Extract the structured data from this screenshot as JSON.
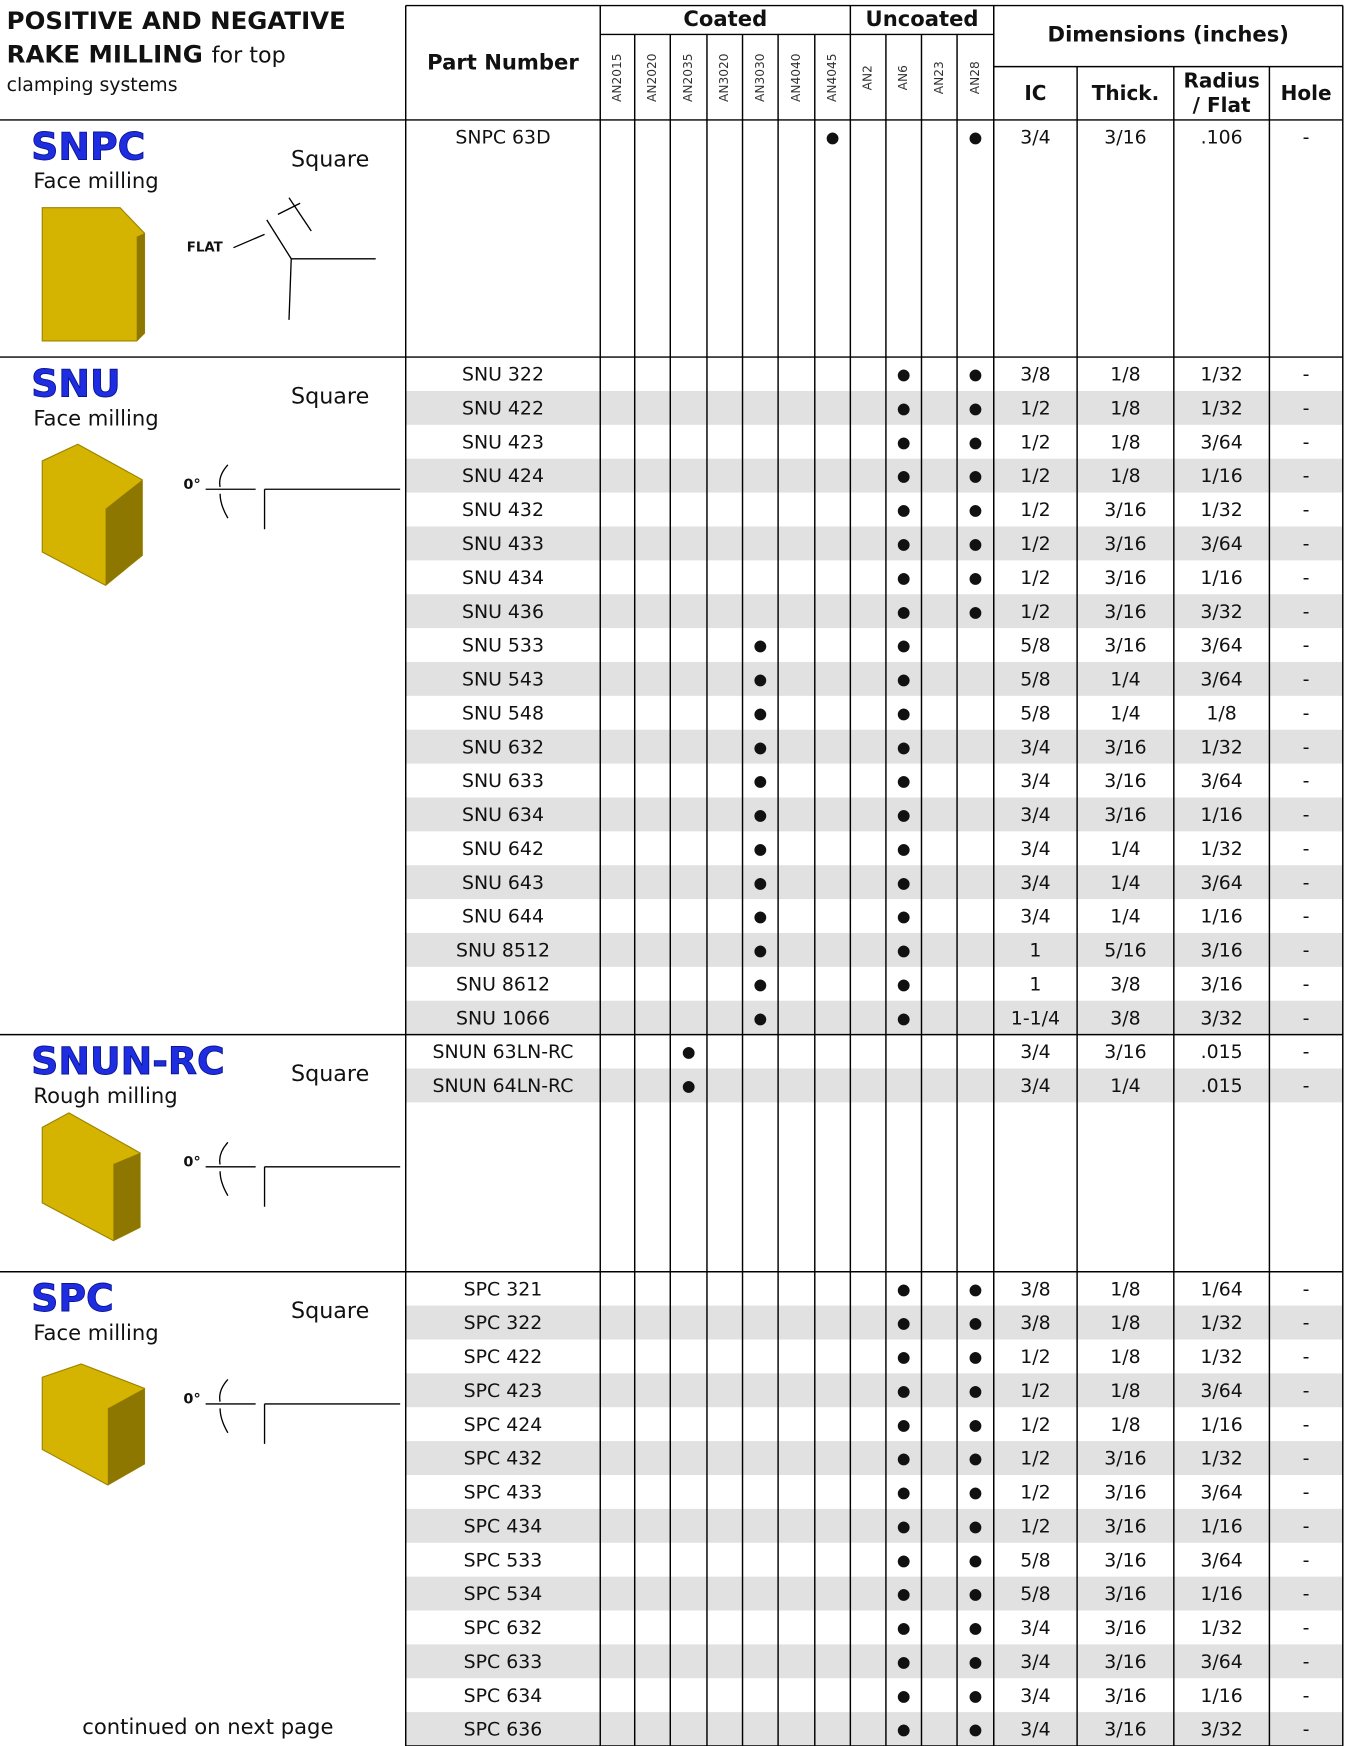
{
  "header": {
    "title": [
      "POSITIVE AND NEGATIVE",
      "RAKE MILLING"
    ],
    "subtitle": [
      "for top",
      "clamping systems"
    ],
    "part_number": "Part Number",
    "groups": [
      "Coated",
      "Uncoated"
    ],
    "grades": [
      "AN2015",
      "AN2020",
      "AN2035",
      "AN3020",
      "AN3030",
      "AN4040",
      "AN4045",
      "AN2",
      "AN6",
      "AN23",
      "AN28"
    ],
    "dimensions": "Dimensions (inches)",
    "dim_columns": [
      "IC",
      "Thick.",
      [
        "Radius",
        "/ Flat"
      ],
      "Hole"
    ]
  },
  "sections": [
    {
      "name": "SNPC",
      "shape": "Square",
      "application": "Face milling",
      "diagram_label": "FLAT",
      "rows": [
        [
          "SNPC 63D",
          null,
          null,
          null,
          null,
          null,
          null,
          "●",
          null,
          null,
          null,
          "●",
          "3/4",
          "3/16",
          ".106",
          "-"
        ]
      ]
    },
    {
      "name": "SNU",
      "shape": "Square",
      "application": "Face milling",
      "diagram_label": "0°",
      "rows": [
        [
          "SNU 322",
          null,
          null,
          null,
          null,
          null,
          null,
          null,
          null,
          "●",
          null,
          "●",
          "3/8",
          "1/8",
          "1/32",
          "-"
        ],
        [
          "SNU 422",
          null,
          null,
          null,
          null,
          null,
          null,
          null,
          null,
          "●",
          null,
          "●",
          "1/2",
          "1/8",
          "1/32",
          "-"
        ],
        [
          "SNU 423",
          null,
          null,
          null,
          null,
          null,
          null,
          null,
          null,
          "●",
          null,
          "●",
          "1/2",
          "1/8",
          "3/64",
          "-"
        ],
        [
          "SNU 424",
          null,
          null,
          null,
          null,
          null,
          null,
          null,
          null,
          "●",
          null,
          "●",
          "1/2",
          "1/8",
          "1/16",
          "-"
        ],
        [
          "SNU 432",
          null,
          null,
          null,
          null,
          null,
          null,
          null,
          null,
          "●",
          null,
          "●",
          "1/2",
          "3/16",
          "1/32",
          "-"
        ],
        [
          "SNU 433",
          null,
          null,
          null,
          null,
          null,
          null,
          null,
          null,
          "●",
          null,
          "●",
          "1/2",
          "3/16",
          "3/64",
          "-"
        ],
        [
          "SNU 434",
          null,
          null,
          null,
          null,
          null,
          null,
          null,
          null,
          "●",
          null,
          "●",
          "1/2",
          "3/16",
          "1/16",
          "-"
        ],
        [
          "SNU 436",
          null,
          null,
          null,
          null,
          null,
          null,
          null,
          null,
          "●",
          null,
          "●",
          "1/2",
          "3/16",
          "3/32",
          "-"
        ],
        [
          "SNU 533",
          null,
          null,
          null,
          null,
          "●",
          null,
          null,
          null,
          "●",
          null,
          null,
          "5/8",
          "3/16",
          "3/64",
          "-"
        ],
        [
          "SNU 543",
          null,
          null,
          null,
          null,
          "●",
          null,
          null,
          null,
          "●",
          null,
          null,
          "5/8",
          "1/4",
          "3/64",
          "-"
        ],
        [
          "SNU 548",
          null,
          null,
          null,
          null,
          "●",
          null,
          null,
          null,
          "●",
          null,
          null,
          "5/8",
          "1/4",
          "1/8",
          "-"
        ],
        [
          "SNU 632",
          null,
          null,
          null,
          null,
          "●",
          null,
          null,
          null,
          "●",
          null,
          null,
          "3/4",
          "3/16",
          "1/32",
          "-"
        ],
        [
          "SNU 633",
          null,
          null,
          null,
          null,
          "●",
          null,
          null,
          null,
          "●",
          null,
          null,
          "3/4",
          "3/16",
          "3/64",
          "-"
        ],
        [
          "SNU 634",
          null,
          null,
          null,
          null,
          "●",
          null,
          null,
          null,
          "●",
          null,
          null,
          "3/4",
          "3/16",
          "1/16",
          "-"
        ],
        [
          "SNU 642",
          null,
          null,
          null,
          null,
          "●",
          null,
          null,
          null,
          "●",
          null,
          null,
          "3/4",
          "1/4",
          "1/32",
          "-"
        ],
        [
          "SNU 643",
          null,
          null,
          null,
          null,
          "●",
          null,
          null,
          null,
          "●",
          null,
          null,
          "3/4",
          "1/4",
          "3/64",
          "-"
        ],
        [
          "SNU 644",
          null,
          null,
          null,
          null,
          "●",
          null,
          null,
          null,
          "●",
          null,
          null,
          "3/4",
          "1/4",
          "1/16",
          "-"
        ],
        [
          "SNU 8512",
          null,
          null,
          null,
          null,
          "●",
          null,
          null,
          null,
          "●",
          null,
          null,
          "1",
          "5/16",
          "3/16",
          "-"
        ],
        [
          "SNU 8612",
          null,
          null,
          null,
          null,
          "●",
          null,
          null,
          null,
          "●",
          null,
          null,
          "1",
          "3/8",
          "3/16",
          "-"
        ],
        [
          "SNU 1066",
          null,
          null,
          null,
          null,
          "●",
          null,
          null,
          null,
          "●",
          null,
          null,
          "1-1/4",
          "3/8",
          "3/32",
          "-"
        ]
      ]
    },
    {
      "name": "SNUN-RC",
      "shape": "Square",
      "application": "Rough milling",
      "diagram_label": "0°",
      "rows": [
        [
          "SNUN 63LN-RC",
          null,
          null,
          "●",
          null,
          null,
          null,
          null,
          null,
          null,
          null,
          null,
          "3/4",
          "3/16",
          ".015",
          "-"
        ],
        [
          "SNUN 64LN-RC",
          null,
          null,
          "●",
          null,
          null,
          null,
          null,
          null,
          null,
          null,
          null,
          "3/4",
          "1/4",
          ".015",
          "-"
        ]
      ]
    },
    {
      "name": "SPC",
      "shape": "Square",
      "application": "Face milling",
      "diagram_label": "0°",
      "rows": [
        [
          "SPC 321",
          null,
          null,
          null,
          null,
          null,
          null,
          null,
          null,
          "●",
          null,
          "●",
          "3/8",
          "1/8",
          "1/64",
          "-"
        ],
        [
          "SPC 322",
          null,
          null,
          null,
          null,
          null,
          null,
          null,
          null,
          "●",
          null,
          "●",
          "3/8",
          "1/8",
          "1/32",
          "-"
        ],
        [
          "SPC 422",
          null,
          null,
          null,
          null,
          null,
          null,
          null,
          null,
          "●",
          null,
          "●",
          "1/2",
          "1/8",
          "1/32",
          "-"
        ],
        [
          "SPC 423",
          null,
          null,
          null,
          null,
          null,
          null,
          null,
          null,
          "●",
          null,
          "●",
          "1/2",
          "1/8",
          "3/64",
          "-"
        ],
        [
          "SPC 424",
          null,
          null,
          null,
          null,
          null,
          null,
          null,
          null,
          "●",
          null,
          "●",
          "1/2",
          "1/8",
          "1/16",
          "-"
        ],
        [
          "SPC 432",
          null,
          null,
          null,
          null,
          null,
          null,
          null,
          null,
          "●",
          null,
          "●",
          "1/2",
          "3/16",
          "1/32",
          "-"
        ],
        [
          "SPC 433",
          null,
          null,
          null,
          null,
          null,
          null,
          null,
          null,
          "●",
          null,
          "●",
          "1/2",
          "3/16",
          "3/64",
          "-"
        ],
        [
          "SPC 434",
          null,
          null,
          null,
          null,
          null,
          null,
          null,
          null,
          "●",
          null,
          "●",
          "1/2",
          "3/16",
          "1/16",
          "-"
        ],
        [
          "SPC 533",
          null,
          null,
          null,
          null,
          null,
          null,
          null,
          null,
          "●",
          null,
          "●",
          "5/8",
          "3/16",
          "3/64",
          "-"
        ],
        [
          "SPC 534",
          null,
          null,
          null,
          null,
          null,
          null,
          null,
          null,
          "●",
          null,
          "●",
          "5/8",
          "3/16",
          "1/16",
          "-"
        ],
        [
          "SPC 632",
          null,
          null,
          null,
          null,
          null,
          null,
          null,
          null,
          "●",
          null,
          "●",
          "3/4",
          "3/16",
          "1/32",
          "-"
        ],
        [
          "SPC 633",
          null,
          null,
          null,
          null,
          null,
          null,
          null,
          null,
          "●",
          null,
          "●",
          "3/4",
          "3/16",
          "3/64",
          "-"
        ],
        [
          "SPC 634",
          null,
          null,
          null,
          null,
          null,
          null,
          null,
          null,
          "●",
          null,
          "●",
          "3/4",
          "3/16",
          "1/16",
          "-"
        ],
        [
          "SPC 636",
          null,
          null,
          null,
          null,
          null,
          null,
          null,
          null,
          "●",
          null,
          "●",
          "3/4",
          "3/16",
          "3/32",
          "-"
        ]
      ]
    }
  ],
  "footer": "continued on next page"
}
